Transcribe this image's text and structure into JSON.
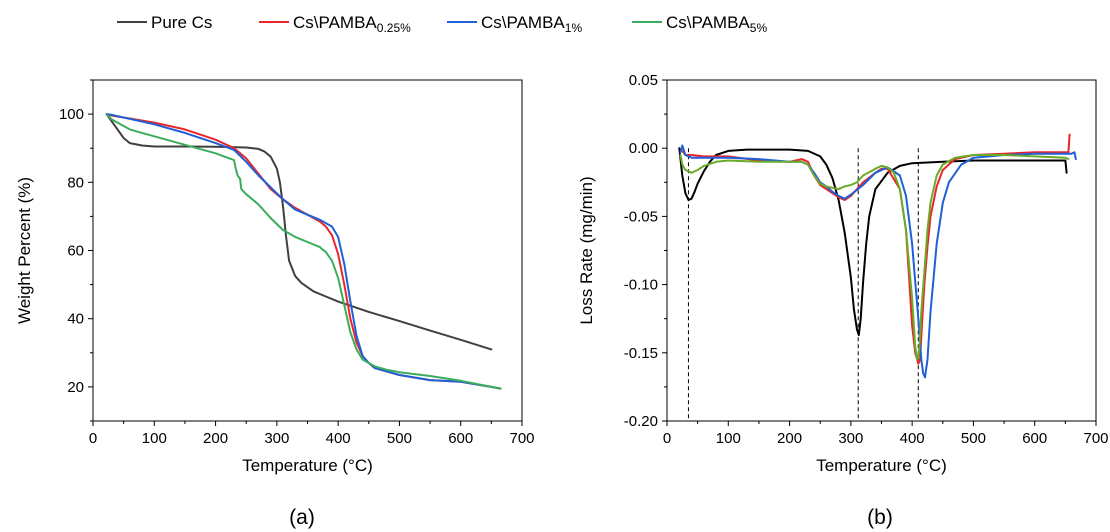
{
  "legend": [
    {
      "name": "Pure Cs",
      "color": "#404040",
      "parts": [
        {
          "t": "Pure Cs",
          "sub": false
        }
      ]
    },
    {
      "name": "Cs\\PAMBA0.25%",
      "color": "#e8272c",
      "parts": [
        {
          "t": "Cs\\PAMBA",
          "sub": false
        },
        {
          "t": "0.25%",
          "sub": true
        }
      ]
    },
    {
      "name": "Cs\\PAMBA1%",
      "color": "#1f5fd8",
      "parts": [
        {
          "t": "Cs\\PAMBA",
          "sub": false
        },
        {
          "t": "1%",
          "sub": true
        }
      ]
    },
    {
      "name": "Cs\\PAMBA5%",
      "color": "#3aad5c",
      "parts": [
        {
          "t": "Cs\\PAMBA",
          "sub": false
        },
        {
          "t": "5%",
          "sub": true
        }
      ]
    }
  ],
  "chart_data": [
    {
      "type": "line",
      "panel_label": "(a)",
      "xlabel": "Temperature (°C)",
      "ylabel": "Weight Percent (%)",
      "xlim": [
        0,
        700
      ],
      "ylim": [
        10,
        110
      ],
      "xticks": [
        0,
        100,
        200,
        300,
        400,
        500,
        600,
        700
      ],
      "yticks": [
        20,
        40,
        60,
        80,
        100
      ],
      "grid": false,
      "legend_position": "top",
      "series": [
        {
          "name": "Pure Cs",
          "color": "#404040",
          "x": [
            22,
            30,
            40,
            50,
            60,
            80,
            100,
            150,
            200,
            250,
            270,
            280,
            290,
            300,
            305,
            310,
            315,
            320,
            330,
            340,
            360,
            380,
            400,
            450,
            500,
            550,
            600,
            650
          ],
          "y": [
            100,
            98,
            95.5,
            93,
            91.5,
            90.8,
            90.5,
            90.5,
            90.4,
            90.2,
            89.8,
            89,
            87.5,
            84,
            80,
            73,
            64,
            57,
            52.5,
            50.5,
            48,
            46.5,
            45,
            42,
            39.3,
            36.5,
            33.8,
            31
          ]
        },
        {
          "name": "Cs\\PAMBA0.25%",
          "color": "#e8272c",
          "x": [
            22,
            30,
            50,
            100,
            150,
            200,
            230,
            250,
            270,
            290,
            310,
            330,
            350,
            370,
            380,
            390,
            400,
            410,
            420,
            430,
            440,
            450,
            460,
            480,
            500,
            550,
            600,
            650,
            665
          ],
          "y": [
            100,
            99.6,
            99,
            97.5,
            95.5,
            92.5,
            90,
            87,
            82.5,
            78,
            75,
            72.5,
            70.5,
            68.5,
            67,
            64.5,
            59,
            50,
            40,
            33,
            29,
            27,
            25.5,
            24.5,
            23.5,
            22,
            21.5,
            20,
            19.5
          ]
        },
        {
          "name": "Cs\\PAMBA1%",
          "color": "#1f5fd8",
          "x": [
            22,
            30,
            50,
            100,
            150,
            200,
            230,
            250,
            270,
            290,
            310,
            330,
            350,
            370,
            390,
            400,
            410,
            420,
            430,
            440,
            450,
            460,
            480,
            500,
            550,
            600,
            650,
            665
          ],
          "y": [
            100,
            99.8,
            99,
            97,
            94.5,
            91.5,
            89.5,
            86,
            82,
            78.5,
            75,
            72,
            70.5,
            69,
            67,
            64,
            56,
            45,
            35,
            29,
            27,
            25.5,
            24.5,
            23.5,
            22,
            21.5,
            20,
            19.5
          ]
        },
        {
          "name": "Cs\\PAMBA5%",
          "color": "#3aad5c",
          "x": [
            22,
            30,
            40,
            50,
            60,
            80,
            100,
            150,
            200,
            230,
            233,
            236,
            240,
            242,
            250,
            270,
            290,
            310,
            330,
            350,
            370,
            380,
            390,
            400,
            410,
            420,
            430,
            440,
            460,
            480,
            500,
            550,
            600,
            650,
            665
          ],
          "y": [
            100,
            98.5,
            97.5,
            96.5,
            95.5,
            94.5,
            93.5,
            91,
            88.5,
            86.5,
            84,
            82,
            81,
            78,
            76.5,
            73.5,
            69.5,
            66,
            64,
            62.5,
            61,
            59.5,
            57,
            52,
            44,
            36,
            31,
            28,
            26,
            25,
            24.3,
            23.2,
            21.8,
            20,
            19.5
          ]
        }
      ]
    },
    {
      "type": "line",
      "panel_label": "(b)",
      "xlabel": "Temperature (°C)",
      "ylabel": "Loss Rate (mg/min)",
      "xlim": [
        0,
        700
      ],
      "ylim": [
        -0.2,
        0.05
      ],
      "xticks": [
        0,
        100,
        200,
        300,
        400,
        500,
        600,
        700
      ],
      "yticks": [
        -0.2,
        -0.15,
        -0.1,
        -0.05,
        0.0,
        0.05
      ],
      "ytick_labels": [
        "-0.20",
        "-0.15",
        "-0.10",
        "-0.05",
        "0.00",
        "0.05"
      ],
      "grid": false,
      "reference_lines_x": [
        35,
        312,
        410
      ],
      "series": [
        {
          "name": "Pure Cs",
          "color": "#000000",
          "x": [
            20,
            25,
            30,
            35,
            40,
            45,
            50,
            60,
            70,
            80,
            100,
            130,
            160,
            200,
            230,
            250,
            260,
            270,
            280,
            290,
            300,
            305,
            310,
            313,
            316,
            320,
            325,
            330,
            340,
            360,
            380,
            400,
            450,
            500,
            550,
            600,
            650,
            652
          ],
          "y": [
            0.0,
            -0.02,
            -0.033,
            -0.038,
            -0.037,
            -0.032,
            -0.026,
            -0.017,
            -0.01,
            -0.005,
            -0.002,
            -0.001,
            -0.001,
            -0.001,
            -0.002,
            -0.006,
            -0.012,
            -0.022,
            -0.038,
            -0.062,
            -0.095,
            -0.118,
            -0.133,
            -0.137,
            -0.125,
            -0.098,
            -0.07,
            -0.05,
            -0.03,
            -0.018,
            -0.013,
            -0.011,
            -0.01,
            -0.009,
            -0.009,
            -0.009,
            -0.009,
            -0.018
          ]
        },
        {
          "name": "Cs\\PAMBA0.25%",
          "color": "#e8272c",
          "x": [
            25,
            30,
            40,
            60,
            100,
            150,
            200,
            220,
            230,
            240,
            250,
            260,
            280,
            290,
            300,
            320,
            340,
            350,
            360,
            380,
            390,
            395,
            400,
            405,
            410,
            413,
            416,
            420,
            425,
            430,
            440,
            450,
            470,
            500,
            550,
            600,
            650,
            655,
            657
          ],
          "y": [
            -0.002,
            -0.005,
            -0.005,
            -0.006,
            -0.006,
            -0.009,
            -0.01,
            -0.008,
            -0.01,
            -0.02,
            -0.027,
            -0.03,
            -0.036,
            -0.038,
            -0.035,
            -0.025,
            -0.018,
            -0.015,
            -0.015,
            -0.03,
            -0.06,
            -0.095,
            -0.13,
            -0.15,
            -0.158,
            -0.155,
            -0.13,
            -0.1,
            -0.072,
            -0.05,
            -0.028,
            -0.016,
            -0.008,
            -0.005,
            -0.004,
            -0.003,
            -0.003,
            -0.003,
            0.01
          ]
        },
        {
          "name": "Cs\\PAMBA1%",
          "color": "#1f5fd8",
          "x": [
            22,
            25,
            30,
            40,
            60,
            100,
            150,
            200,
            220,
            230,
            240,
            250,
            260,
            270,
            280,
            290,
            300,
            320,
            340,
            360,
            380,
            390,
            400,
            410,
            415,
            418,
            421,
            425,
            430,
            440,
            450,
            460,
            480,
            500,
            550,
            600,
            650,
            660,
            665,
            667
          ],
          "y": [
            -0.003,
            0.002,
            -0.005,
            -0.007,
            -0.007,
            -0.007,
            -0.008,
            -0.01,
            -0.01,
            -0.012,
            -0.018,
            -0.025,
            -0.028,
            -0.032,
            -0.035,
            -0.037,
            -0.034,
            -0.027,
            -0.018,
            -0.014,
            -0.02,
            -0.035,
            -0.07,
            -0.125,
            -0.155,
            -0.165,
            -0.168,
            -0.155,
            -0.12,
            -0.07,
            -0.04,
            -0.025,
            -0.012,
            -0.007,
            -0.005,
            -0.004,
            -0.004,
            -0.004,
            -0.003,
            -0.008
          ]
        },
        {
          "name": "Cs\\PAMBA5%",
          "color": "#6aab2a",
          "x": [
            22,
            25,
            30,
            40,
            50,
            60,
            80,
            100,
            150,
            200,
            220,
            230,
            240,
            250,
            260,
            270,
            280,
            290,
            300,
            310,
            320,
            340,
            350,
            360,
            370,
            380,
            390,
            400,
            405,
            408,
            410,
            412,
            415,
            420,
            425,
            430,
            440,
            450,
            470,
            500,
            550,
            600,
            650,
            655
          ],
          "y": [
            -0.005,
            -0.012,
            -0.016,
            -0.018,
            -0.016,
            -0.013,
            -0.01,
            -0.009,
            -0.01,
            -0.01,
            -0.01,
            -0.012,
            -0.02,
            -0.026,
            -0.028,
            -0.029,
            -0.03,
            -0.028,
            -0.027,
            -0.025,
            -0.02,
            -0.015,
            -0.013,
            -0.014,
            -0.018,
            -0.03,
            -0.06,
            -0.11,
            -0.145,
            -0.155,
            -0.153,
            -0.145,
            -0.12,
            -0.09,
            -0.06,
            -0.04,
            -0.02,
            -0.012,
            -0.007,
            -0.005,
            -0.005,
            -0.006,
            -0.007,
            -0.008
          ]
        }
      ]
    }
  ]
}
